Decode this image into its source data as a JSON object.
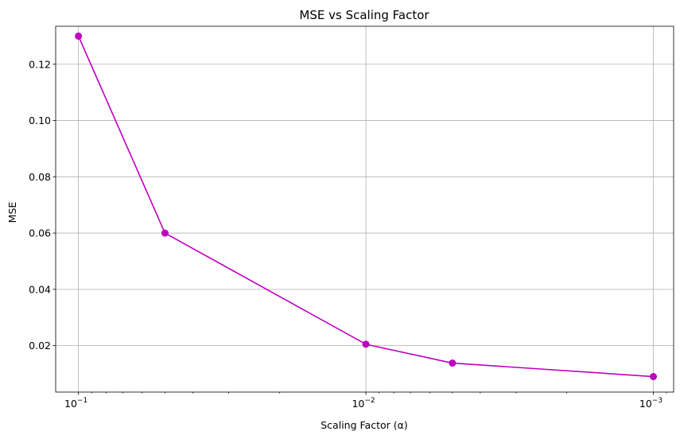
{
  "chart_data": {
    "type": "line",
    "title": "MSE vs Scaling Factor",
    "xlabel": "Scaling Factor (α)",
    "ylabel": "MSE",
    "x_scale": "log",
    "x_inverted": true,
    "xlim": [
      0.12,
      0.00085
    ],
    "ylim": [
      0.0035,
      0.1335
    ],
    "grid": true,
    "x_ticks": [
      {
        "value": 0.1,
        "base": "10",
        "exp": "−1"
      },
      {
        "value": 0.01,
        "base": "10",
        "exp": "−2"
      },
      {
        "value": 0.001,
        "base": "10",
        "exp": "−3"
      }
    ],
    "y_ticks": [
      {
        "value": 0.02,
        "label": "0.02"
      },
      {
        "value": 0.04,
        "label": "0.04"
      },
      {
        "value": 0.06,
        "label": "0.06"
      },
      {
        "value": 0.08,
        "label": "0.08"
      },
      {
        "value": 0.1,
        "label": "0.10"
      },
      {
        "value": 0.12,
        "label": "0.12"
      }
    ],
    "series": [
      {
        "color": "#bf00bf",
        "marker": "circle",
        "x": [
          0.1,
          0.05,
          0.01,
          0.005,
          0.001
        ],
        "y": [
          0.13,
          0.06,
          0.0205,
          0.0138,
          0.009
        ]
      }
    ]
  }
}
